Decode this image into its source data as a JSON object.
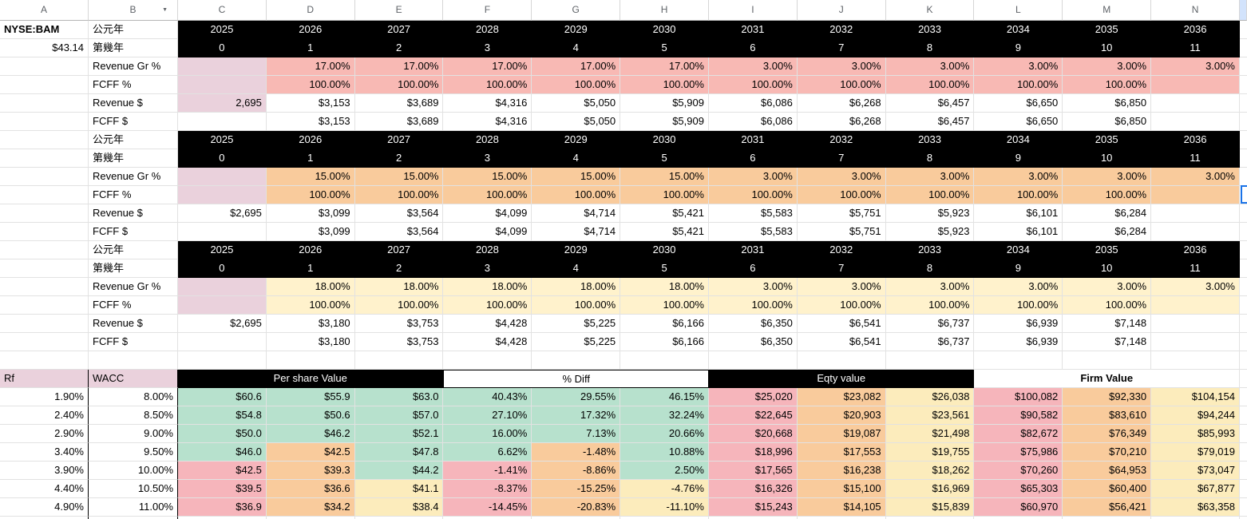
{
  "meta": {
    "ticker": "NYSE:BAM",
    "price": "$43.14"
  },
  "columns": [
    "A",
    "B",
    "C",
    "D",
    "E",
    "F",
    "G",
    "H",
    "I",
    "J",
    "K",
    "L",
    "M",
    "N"
  ],
  "filter_icon_column": "B",
  "row_labels": {
    "year_ad": "公元年",
    "year_num": "第幾年",
    "revenue_gr": "Revenue Gr %",
    "fcff_pct": "FCFF %",
    "revenue_usd": "Revenue $",
    "fcff_usd": "FCFF $"
  },
  "scenarios": [
    {
      "accent": "salmon",
      "years": [
        "2025",
        "2026",
        "2027",
        "2028",
        "2029",
        "2030",
        "2031",
        "2032",
        "2033",
        "2034",
        "2035",
        "2036"
      ],
      "nums": [
        "0",
        "1",
        "2",
        "3",
        "4",
        "5",
        "6",
        "7",
        "8",
        "9",
        "10",
        "11"
      ],
      "growth": [
        "",
        "17.00%",
        "17.00%",
        "17.00%",
        "17.00%",
        "17.00%",
        "3.00%",
        "3.00%",
        "3.00%",
        "3.00%",
        "3.00%",
        "3.00%"
      ],
      "fcff_pct": [
        "",
        "100.00%",
        "100.00%",
        "100.00%",
        "100.00%",
        "100.00%",
        "100.00%",
        "100.00%",
        "100.00%",
        "100.00%",
        "100.00%",
        ""
      ],
      "revenue": [
        "2,695",
        "$3,153",
        "$3,689",
        "$4,316",
        "$5,050",
        "$5,909",
        "$6,086",
        "$6,268",
        "$6,457",
        "$6,650",
        "$6,850",
        ""
      ],
      "fcff": [
        "",
        "$3,153",
        "$3,689",
        "$4,316",
        "$5,050",
        "$5,909",
        "$6,086",
        "$6,268",
        "$6,457",
        "$6,650",
        "$6,850",
        ""
      ],
      "first_cell_highlight": true
    },
    {
      "accent": "orange",
      "years": [
        "2025",
        "2026",
        "2027",
        "2028",
        "2029",
        "2030",
        "2031",
        "2032",
        "2033",
        "2034",
        "2035",
        "2036"
      ],
      "nums": [
        "0",
        "1",
        "2",
        "3",
        "4",
        "5",
        "6",
        "7",
        "8",
        "9",
        "10",
        "11"
      ],
      "growth": [
        "",
        "15.00%",
        "15.00%",
        "15.00%",
        "15.00%",
        "15.00%",
        "3.00%",
        "3.00%",
        "3.00%",
        "3.00%",
        "3.00%",
        "3.00%"
      ],
      "fcff_pct": [
        "",
        "100.00%",
        "100.00%",
        "100.00%",
        "100.00%",
        "100.00%",
        "100.00%",
        "100.00%",
        "100.00%",
        "100.00%",
        "100.00%",
        ""
      ],
      "revenue": [
        "$2,695",
        "$3,099",
        "$3,564",
        "$4,099",
        "$4,714",
        "$5,421",
        "$5,583",
        "$5,751",
        "$5,923",
        "$6,101",
        "$6,284",
        ""
      ],
      "fcff": [
        "",
        "$3,099",
        "$3,564",
        "$4,099",
        "$4,714",
        "$5,421",
        "$5,583",
        "$5,751",
        "$5,923",
        "$6,101",
        "$6,284",
        ""
      ],
      "first_cell_highlight": false
    },
    {
      "accent": "yellow",
      "years": [
        "2025",
        "2026",
        "2027",
        "2028",
        "2029",
        "2030",
        "2031",
        "2032",
        "2033",
        "2034",
        "2035",
        "2036"
      ],
      "nums": [
        "0",
        "1",
        "2",
        "3",
        "4",
        "5",
        "6",
        "7",
        "8",
        "9",
        "10",
        "11"
      ],
      "growth": [
        "",
        "18.00%",
        "18.00%",
        "18.00%",
        "18.00%",
        "18.00%",
        "3.00%",
        "3.00%",
        "3.00%",
        "3.00%",
        "3.00%",
        "3.00%"
      ],
      "fcff_pct": [
        "",
        "100.00%",
        "100.00%",
        "100.00%",
        "100.00%",
        "100.00%",
        "100.00%",
        "100.00%",
        "100.00%",
        "100.00%",
        "100.00%",
        ""
      ],
      "revenue": [
        "$2,695",
        "$3,180",
        "$3,753",
        "$4,428",
        "$5,225",
        "$6,166",
        "$6,350",
        "$6,541",
        "$6,737",
        "$6,939",
        "$7,148",
        ""
      ],
      "fcff": [
        "",
        "$3,180",
        "$3,753",
        "$4,428",
        "$5,225",
        "$6,166",
        "$6,350",
        "$6,541",
        "$6,737",
        "$6,939",
        "$7,148",
        ""
      ],
      "first_cell_highlight": false
    }
  ],
  "sensitivity": {
    "headers": {
      "rf": "Rf",
      "wacc": "WACC",
      "per_share": "Per share Value",
      "pct_diff": "% Diff",
      "eqty": "Eqty value",
      "firm": "Firm Value"
    },
    "rf": [
      "1.90%",
      "2.40%",
      "2.90%",
      "3.40%",
      "3.90%",
      "4.40%",
      "4.90%"
    ],
    "wacc": [
      "8.00%",
      "8.50%",
      "9.00%",
      "9.50%",
      "10.00%",
      "10.50%",
      "11.00%"
    ],
    "per_share": [
      [
        "$60.6",
        "$55.9",
        "$63.0"
      ],
      [
        "$54.8",
        "$50.6",
        "$57.0"
      ],
      [
        "$50.0",
        "$46.2",
        "$52.1"
      ],
      [
        "$46.0",
        "$42.5",
        "$47.8"
      ],
      [
        "$42.5",
        "$39.3",
        "$44.2"
      ],
      [
        "$39.5",
        "$36.6",
        "$41.1"
      ],
      [
        "$36.9",
        "$34.2",
        "$38.4"
      ]
    ],
    "pct_diff": [
      [
        "40.43%",
        "29.55%",
        "46.15%"
      ],
      [
        "27.10%",
        "17.32%",
        "32.24%"
      ],
      [
        "16.00%",
        "7.13%",
        "20.66%"
      ],
      [
        "6.62%",
        "-1.48%",
        "10.88%"
      ],
      [
        "-1.41%",
        "-8.86%",
        "2.50%"
      ],
      [
        "-8.37%",
        "-15.25%",
        "-4.76%"
      ],
      [
        "-14.45%",
        "-20.83%",
        "-11.10%"
      ]
    ],
    "eqty": [
      [
        "$25,020",
        "$23,082",
        "$26,038"
      ],
      [
        "$22,645",
        "$20,903",
        "$23,561"
      ],
      [
        "$20,668",
        "$19,087",
        "$21,498"
      ],
      [
        "$18,996",
        "$17,553",
        "$19,755"
      ],
      [
        "$17,565",
        "$16,238",
        "$18,262"
      ],
      [
        "$16,326",
        "$15,100",
        "$16,969"
      ],
      [
        "$15,243",
        "$14,105",
        "$15,839"
      ]
    ],
    "firm": [
      [
        "$100,082",
        "$92,330",
        "$104,154"
      ],
      [
        "$90,582",
        "$83,610",
        "$94,244"
      ],
      [
        "$82,672",
        "$76,349",
        "$85,993"
      ],
      [
        "$75,986",
        "$70,210",
        "$79,019"
      ],
      [
        "$70,260",
        "$64,953",
        "$73,047"
      ],
      [
        "$65,303",
        "$60,400",
        "$67,877"
      ],
      [
        "$60,970",
        "$56,421",
        "$63,358"
      ]
    ],
    "cf_colors_c_to_h": [
      [
        "g",
        "g",
        "g",
        "g",
        "g",
        "g"
      ],
      [
        "g",
        "g",
        "g",
        "g",
        "g",
        "g"
      ],
      [
        "g",
        "g",
        "g",
        "g",
        "g",
        "g"
      ],
      [
        "g",
        "o",
        "g",
        "g",
        "o",
        "g"
      ],
      [
        "p",
        "o",
        "g",
        "p",
        "o",
        "g"
      ],
      [
        "p",
        "o",
        "y",
        "p",
        "o",
        "y"
      ],
      [
        "p",
        "o",
        "y",
        "p",
        "o",
        "y"
      ]
    ],
    "right_block_colors": [
      "p",
      "o",
      "y",
      "p",
      "o",
      "y"
    ]
  },
  "colors": {
    "salmon": "#f8b9b4",
    "orange": "#f9cb9c",
    "yellow": "#fff2cc",
    "lavender": "#ead1dc",
    "green": "#b7e1cd",
    "p": "#f6b5bb",
    "o": "#f9cb9c",
    "y": "#fcecbc",
    "g": "#b7e1cd",
    "band": "#000000",
    "band_text": "#ffffff",
    "grid": "#e2e2e2",
    "header_text": "#5f6368",
    "selection_blue": "#1a73e8",
    "sliver_header_blue": "#d2e3fc"
  }
}
